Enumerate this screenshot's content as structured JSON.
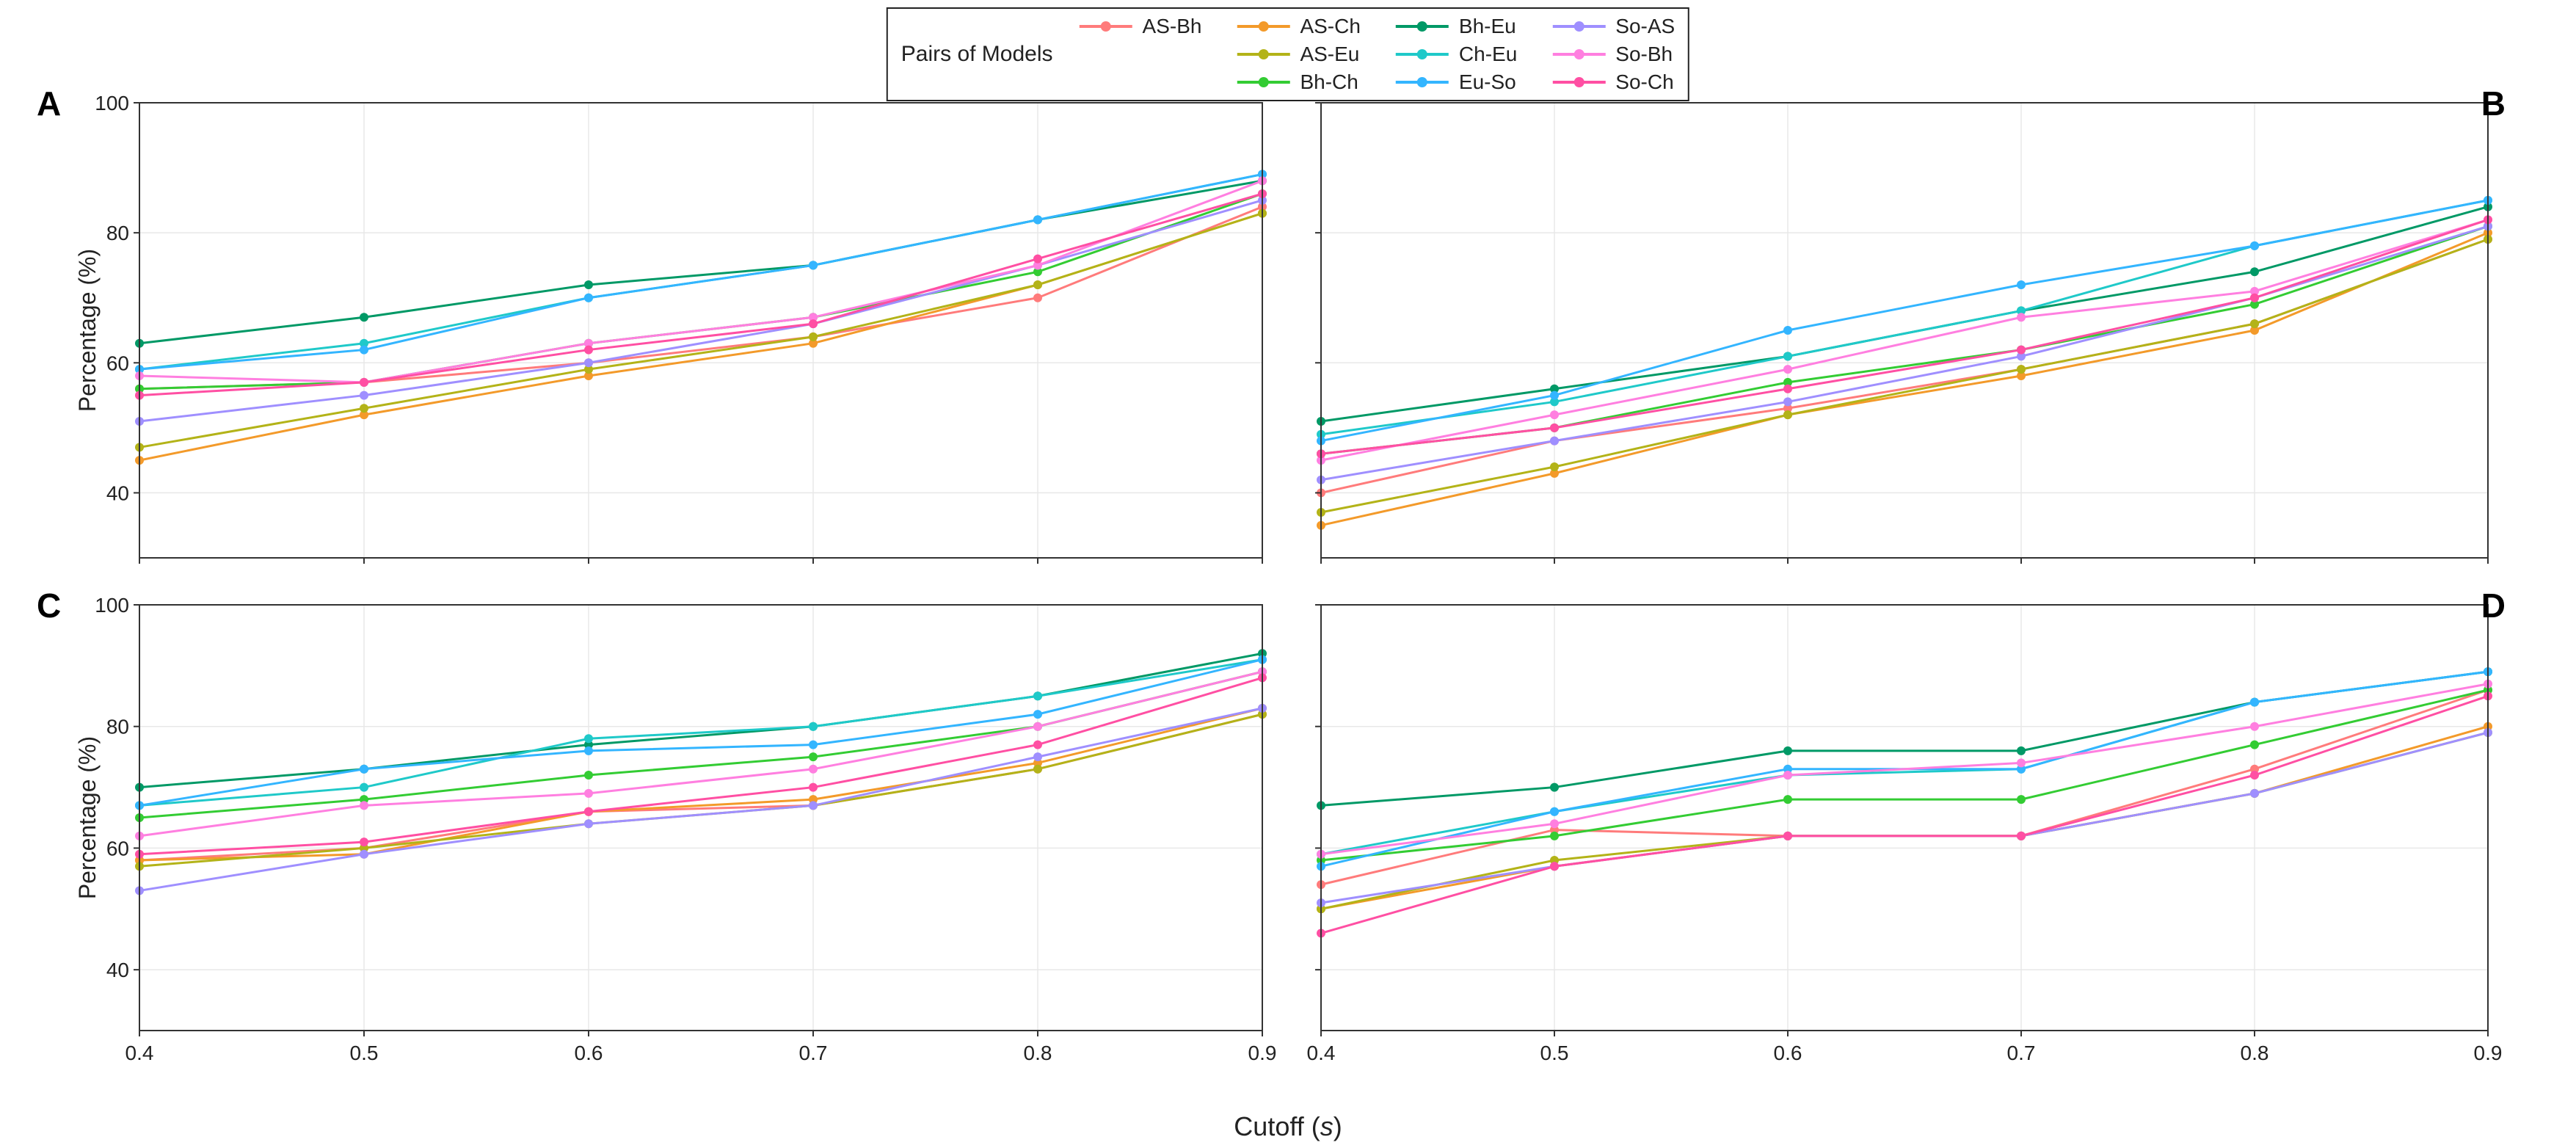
{
  "legend": {
    "title": "Pairs of Models",
    "items": [
      {
        "key": "AS-Bh",
        "label": "AS-Bh",
        "color": "#ff7b7b"
      },
      {
        "key": "AS-Ch",
        "label": "AS-Ch",
        "color": "#f39a2a"
      },
      {
        "key": "AS-Eu",
        "label": "AS-Eu",
        "color": "#b3b318"
      },
      {
        "key": "Bh-Ch",
        "label": "Bh-Ch",
        "color": "#33cc33"
      },
      {
        "key": "Bh-Eu",
        "label": "Bh-Eu",
        "color": "#009966"
      },
      {
        "key": "Ch-Eu",
        "label": "Ch-Eu",
        "color": "#1fc9c9"
      },
      {
        "key": "Eu-So",
        "label": "Eu-So",
        "color": "#33b5ff"
      },
      {
        "key": "So-AS",
        "label": "So-AS",
        "color": "#9f8fff"
      },
      {
        "key": "So-Bh",
        "label": "So-Bh",
        "color": "#ff7fe0"
      },
      {
        "key": "So-Ch",
        "label": "So-Ch",
        "color": "#ff4fa3"
      }
    ],
    "column_layout": [
      [
        "AS-Bh"
      ],
      [
        "AS-Ch",
        "AS-Eu",
        "Bh-Ch"
      ],
      [
        "Bh-Eu",
        "Ch-Eu",
        "Eu-So"
      ],
      [
        "So-AS",
        "So-Bh",
        "So-Ch"
      ]
    ]
  },
  "axes": {
    "x": {
      "label": "Cutoff (s)",
      "label_italic_part": "s",
      "min": 0.4,
      "max": 0.9,
      "ticks": [
        0.4,
        0.5,
        0.6,
        0.7,
        0.8,
        0.9
      ],
      "label_fontsize": 36,
      "tick_fontsize": 28
    },
    "y": {
      "label": "Percentage (%)",
      "min": 30,
      "max": 100,
      "ticks": [
        40,
        60,
        80,
        100
      ],
      "label_fontsize": 32,
      "tick_fontsize": 28
    },
    "grid_color": "#e8e8e8",
    "frame_color": "#333333",
    "background_color": "#ffffff"
  },
  "style": {
    "line_width": 3,
    "marker_radius": 6,
    "marker_shape": "circle"
  },
  "panels": [
    {
      "tag": "A",
      "tag_position": "top-left",
      "show_xticks": false,
      "show_ylabel": true,
      "series": {
        "AS-Bh": [
          56,
          57,
          60,
          64,
          70,
          84
        ],
        "AS-Ch": [
          45,
          52,
          58,
          63,
          72,
          83
        ],
        "AS-Eu": [
          47,
          53,
          59,
          64,
          72,
          83
        ],
        "Bh-Ch": [
          56,
          57,
          63,
          67,
          74,
          86
        ],
        "Bh-Eu": [
          63,
          67,
          72,
          75,
          82,
          88
        ],
        "Ch-Eu": [
          59,
          63,
          70,
          75,
          82,
          89
        ],
        "Eu-So": [
          59,
          62,
          70,
          75,
          82,
          89
        ],
        "So-AS": [
          51,
          55,
          60,
          66,
          75,
          85
        ],
        "So-Bh": [
          58,
          57,
          63,
          67,
          75,
          88
        ],
        "So-Ch": [
          55,
          57,
          62,
          66,
          76,
          86
        ]
      }
    },
    {
      "tag": "B",
      "tag_position": "top-right",
      "show_xticks": false,
      "show_ylabel": false,
      "series": {
        "AS-Bh": [
          40,
          48,
          53,
          59,
          66,
          79
        ],
        "AS-Ch": [
          35,
          43,
          52,
          58,
          65,
          80
        ],
        "AS-Eu": [
          37,
          44,
          52,
          59,
          66,
          79
        ],
        "Bh-Ch": [
          46,
          50,
          57,
          62,
          69,
          81
        ],
        "Bh-Eu": [
          51,
          56,
          61,
          68,
          74,
          84
        ],
        "Ch-Eu": [
          49,
          54,
          61,
          68,
          78,
          85
        ],
        "Eu-So": [
          48,
          55,
          65,
          72,
          78,
          85
        ],
        "So-AS": [
          42,
          48,
          54,
          61,
          70,
          81
        ],
        "So-Bh": [
          45,
          52,
          59,
          67,
          71,
          82
        ],
        "So-Ch": [
          46,
          50,
          56,
          62,
          70,
          82
        ]
      }
    },
    {
      "tag": "C",
      "tag_position": "top-left",
      "show_xticks": true,
      "show_ylabel": true,
      "series": {
        "AS-Bh": [
          58,
          60,
          66,
          67,
          73,
          82
        ],
        "AS-Ch": [
          58,
          59,
          66,
          68,
          74,
          83
        ],
        "AS-Eu": [
          57,
          60,
          64,
          67,
          73,
          82
        ],
        "Bh-Ch": [
          65,
          68,
          72,
          75,
          80,
          89
        ],
        "Bh-Eu": [
          70,
          73,
          77,
          80,
          85,
          92
        ],
        "Ch-Eu": [
          67,
          70,
          78,
          80,
          85,
          91
        ],
        "Eu-So": [
          67,
          73,
          76,
          77,
          82,
          91
        ],
        "So-AS": [
          53,
          59,
          64,
          67,
          75,
          83
        ],
        "So-Bh": [
          62,
          67,
          69,
          73,
          80,
          89
        ],
        "So-Ch": [
          59,
          61,
          66,
          70,
          77,
          88
        ]
      }
    },
    {
      "tag": "D",
      "tag_position": "top-right",
      "show_xticks": true,
      "show_ylabel": false,
      "series": {
        "AS-Bh": [
          54,
          63,
          62,
          62,
          73,
          86
        ],
        "AS-Ch": [
          50,
          57,
          62,
          62,
          69,
          80
        ],
        "AS-Eu": [
          50,
          58,
          62,
          62,
          69,
          79
        ],
        "Bh-Ch": [
          58,
          62,
          68,
          68,
          77,
          86
        ],
        "Bh-Eu": [
          67,
          70,
          76,
          76,
          84,
          89
        ],
        "Ch-Eu": [
          59,
          66,
          72,
          73,
          84,
          89
        ],
        "Eu-So": [
          57,
          66,
          73,
          73,
          84,
          89
        ],
        "So-AS": [
          51,
          57,
          62,
          62,
          69,
          79
        ],
        "So-Bh": [
          59,
          64,
          72,
          74,
          80,
          87
        ],
        "So-Ch": [
          46,
          57,
          62,
          62,
          72,
          85
        ]
      }
    }
  ]
}
